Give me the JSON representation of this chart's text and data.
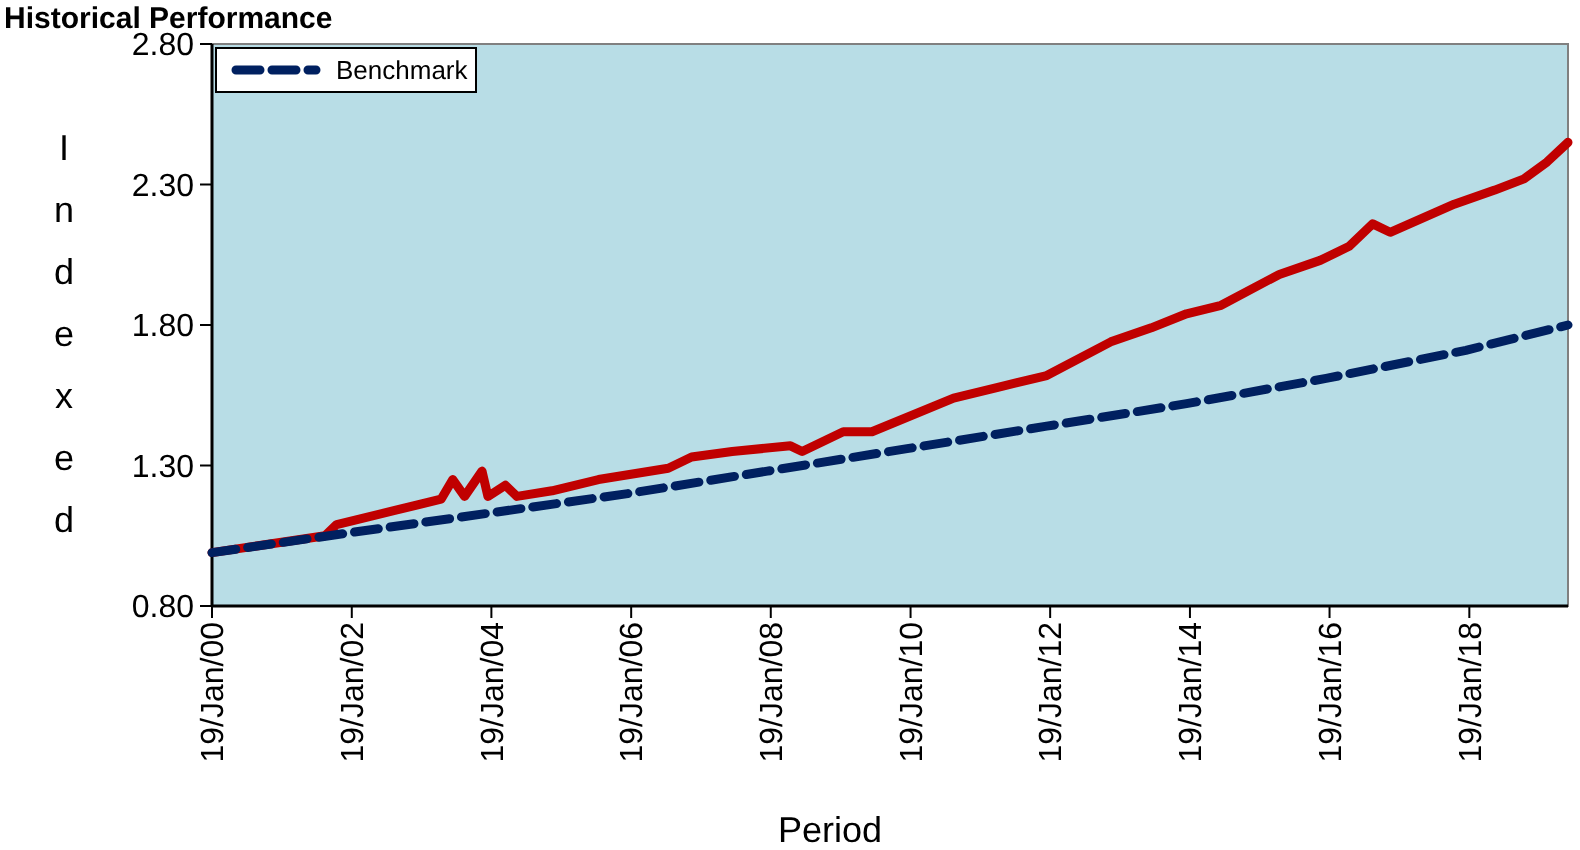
{
  "chart_data": {
    "type": "line",
    "title": "Historical Performance",
    "xlabel": "Period",
    "ylabel": "Indexed",
    "xlim": [
      "2000-01-19",
      "2019-06-19"
    ],
    "xticks": [
      {
        "value": "2000-01-19",
        "label": "19/Jan/00"
      },
      {
        "value": "2002-01-19",
        "label": "19/Jan/02"
      },
      {
        "value": "2004-01-19",
        "label": "19/Jan/04"
      },
      {
        "value": "2006-01-19",
        "label": "19/Jan/06"
      },
      {
        "value": "2008-01-19",
        "label": "19/Jan/08"
      },
      {
        "value": "2010-01-19",
        "label": "19/Jan/10"
      },
      {
        "value": "2012-01-19",
        "label": "19/Jan/12"
      },
      {
        "value": "2014-01-19",
        "label": "19/Jan/14"
      },
      {
        "value": "2016-01-19",
        "label": "19/Jan/16"
      },
      {
        "value": "2018-01-19",
        "label": "19/Jan/18"
      }
    ],
    "ylim": [
      0.8,
      2.8
    ],
    "yticks": [
      {
        "value": 0.8,
        "label": "0.80"
      },
      {
        "value": 1.3,
        "label": "1.30"
      },
      {
        "value": 1.8,
        "label": "1.80"
      },
      {
        "value": 2.3,
        "label": "2.30"
      },
      {
        "value": 2.8,
        "label": "2.80"
      }
    ],
    "grid": false,
    "legend": "top left",
    "series": [
      {
        "color": "#c00000",
        "line_style": "solid",
        "x": [
          "2000-01-19",
          "2001-09",
          "2001-11",
          "2002-09",
          "2003-05",
          "2003-07",
          "2003-09",
          "2003-12",
          "2004-01",
          "2004-04",
          "2004-06",
          "2004-12",
          "2005-08",
          "2006-08",
          "2006-12",
          "2007-07",
          "2008-05",
          "2008-07",
          "2009-02",
          "2009-07",
          "2010-09",
          "2011-05",
          "2012-01",
          "2012-12",
          "2013-07",
          "2014-01",
          "2014-07",
          "2015-05",
          "2015-12",
          "2016-05",
          "2016-09",
          "2016-12",
          "2017-11",
          "2018-06",
          "2018-11",
          "2019-03",
          "2019-06-19"
        ],
        "values": [
          0.99,
          1.05,
          1.09,
          1.14,
          1.18,
          1.25,
          1.19,
          1.28,
          1.19,
          1.23,
          1.19,
          1.21,
          1.25,
          1.29,
          1.33,
          1.35,
          1.37,
          1.35,
          1.42,
          1.42,
          1.54,
          1.58,
          1.62,
          1.74,
          1.79,
          1.84,
          1.87,
          1.98,
          2.03,
          2.08,
          2.16,
          2.13,
          2.23,
          2.28,
          2.32,
          2.38,
          2.45
        ]
      },
      {
        "name": "Benchmark",
        "color": "#002060",
        "line_style": "dashed",
        "x": [
          "2000-01-19",
          "2002-01",
          "2004-01",
          "2006-01",
          "2008-01",
          "2010-01",
          "2012-01",
          "2014-01",
          "2016-01",
          "2018-01",
          "2019-06-19"
        ],
        "values": [
          0.99,
          1.06,
          1.13,
          1.2,
          1.28,
          1.36,
          1.44,
          1.52,
          1.61,
          1.71,
          1.8
        ]
      }
    ]
  }
}
